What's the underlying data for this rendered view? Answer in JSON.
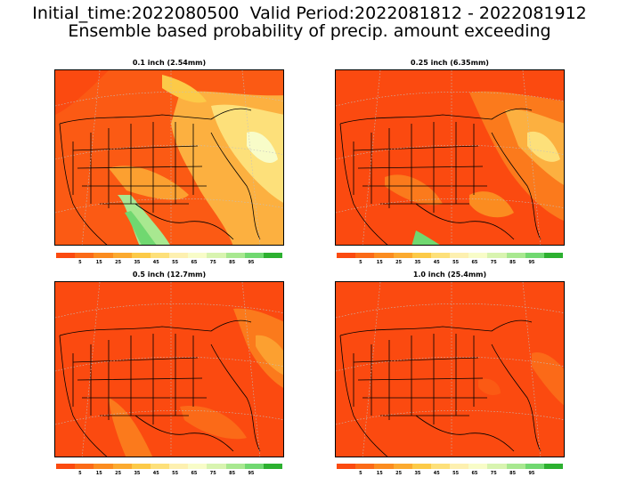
{
  "header": {
    "line1": "Initial_time:2022080500  Valid Period:2022081812 - 2022081912",
    "line2": "Ensemble based probability of precip. amount exceeding"
  },
  "panels": [
    {
      "title": "0.1 inch (2.54mm)",
      "dominant_probability": "5"
    },
    {
      "title": "0.25 inch (6.35mm)",
      "dominant_probability": "5"
    },
    {
      "title": "0.5 inch (12.7mm)",
      "dominant_probability": "5"
    },
    {
      "title": "1.0 inch (25.4mm)",
      "dominant_probability": "5"
    }
  ],
  "colorbar": {
    "colors": [
      "#fb4a10",
      "#fb6a18",
      "#fb8c20",
      "#fbaa30",
      "#fcca48",
      "#fde07a",
      "#fdf0b0",
      "#f8fcc8",
      "#d8f4b0",
      "#a8e890",
      "#70d870",
      "#2cb030"
    ],
    "tick_labels": [
      "5",
      "15",
      "25",
      "35",
      "45",
      "55",
      "65",
      "75",
      "85",
      "95"
    ]
  }
}
